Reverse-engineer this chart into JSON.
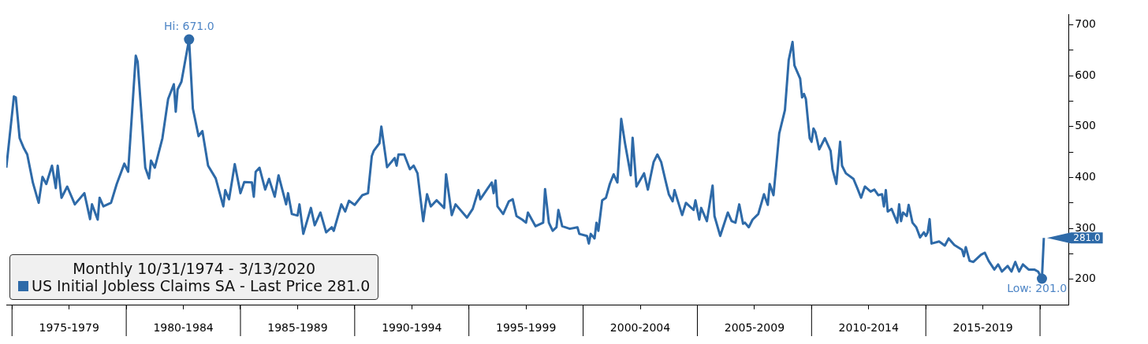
{
  "chart_data": {
    "type": "line",
    "legend_title": "Monthly 10/31/1974 - 3/13/2020",
    "legend": "bottom left",
    "x": [
      "1974-10",
      "1975-02",
      "1975-03",
      "1975-05",
      "1975-07",
      "1975-09",
      "1975-12",
      "1976-03",
      "1976-05",
      "1976-07",
      "1976-10",
      "1976-12",
      "1977-01",
      "1977-03",
      "1977-06",
      "1977-10",
      "1978-03",
      "1978-06",
      "1978-07",
      "1978-10",
      "1978-11",
      "1979-01",
      "1979-05",
      "1979-08",
      "1979-12",
      "1980-02",
      "1980-06",
      "1980-07",
      "1980-11",
      "1981-01",
      "1981-02",
      "1981-04",
      "1981-08",
      "1981-11",
      "1982-02",
      "1982-03",
      "1982-04",
      "1982-06",
      "1982-10",
      "1982-12",
      "1983-03",
      "1983-05",
      "1983-08",
      "1983-12",
      "1984-04",
      "1984-05",
      "1984-07",
      "1984-10",
      "1985-01",
      "1985-03",
      "1985-07",
      "1985-08",
      "1985-09",
      "1985-11",
      "1986-02",
      "1986-04",
      "1986-07",
      "1986-09",
      "1987-01",
      "1987-02",
      "1987-04",
      "1987-07",
      "1987-08",
      "1987-10",
      "1988-02",
      "1988-04",
      "1988-07",
      "1988-10",
      "1989-01",
      "1989-02",
      "1989-06",
      "1989-08",
      "1989-10",
      "1990-01",
      "1990-05",
      "1990-08",
      "1990-10",
      "1990-11",
      "1991-02",
      "1991-03",
      "1991-06",
      "1991-10",
      "1991-11",
      "1991-12",
      "1992-03",
      "1992-06",
      "1992-08",
      "1992-10",
      "1993-01",
      "1993-03",
      "1993-05",
      "1993-08",
      "1993-12",
      "1994-01",
      "1994-04",
      "1994-06",
      "1994-12",
      "1995-03",
      "1995-06",
      "1995-07",
      "1995-11",
      "1996-01",
      "1996-02",
      "1996-03",
      "1996-04",
      "1996-07",
      "1996-10",
      "1996-12",
      "1997-02",
      "1997-05",
      "1997-07",
      "1997-08",
      "1997-12",
      "1998-04",
      "1998-05",
      "1998-07",
      "1998-09",
      "1998-11",
      "1998-12",
      "1999-02",
      "1999-06",
      "1999-10",
      "1999-11",
      "2000-03",
      "2000-04",
      "2000-05",
      "2000-07",
      "2000-08",
      "2000-09",
      "2000-11",
      "2001-01",
      "2001-03",
      "2001-05",
      "2001-07",
      "2001-09",
      "2001-11",
      "2002-02",
      "2002-03",
      "2002-05",
      "2002-09",
      "2002-11",
      "2003-02",
      "2003-04",
      "2003-06",
      "2003-08",
      "2003-10",
      "2003-12",
      "2004-01",
      "2004-05",
      "2004-07",
      "2004-11",
      "2004-12",
      "2005-02",
      "2005-03",
      "2005-06",
      "2005-09",
      "2005-10",
      "2006-01",
      "2006-05",
      "2006-07",
      "2006-09",
      "2006-11",
      "2007-01",
      "2007-02",
      "2007-04",
      "2007-06",
      "2007-09",
      "2007-12",
      "2008-02",
      "2008-03",
      "2008-05",
      "2008-08",
      "2008-11",
      "2009-01",
      "2009-03",
      "2009-04",
      "2009-07",
      "2009-08",
      "2009-09",
      "2009-10",
      "2009-12",
      "2010-01",
      "2010-02",
      "2010-03",
      "2010-05",
      "2010-08",
      "2010-11",
      "2010-12",
      "2011-02",
      "2011-04",
      "2011-05",
      "2011-07",
      "2011-11",
      "2012-01",
      "2012-03",
      "2012-05",
      "2012-08",
      "2012-10",
      "2012-12",
      "2013-02",
      "2013-03",
      "2013-04",
      "2013-05",
      "2013-07",
      "2013-10",
      "2013-11",
      "2013-12",
      "2014-01",
      "2014-03",
      "2014-04",
      "2014-06",
      "2014-08",
      "2014-10",
      "2014-12",
      "2015-01",
      "2015-02",
      "2015-03",
      "2015-04",
      "2015-08",
      "2015-11",
      "2016-01",
      "2016-04",
      "2016-08",
      "2016-09",
      "2016-10",
      "2016-12",
      "2017-02",
      "2017-06",
      "2017-08",
      "2017-10",
      "2018-01",
      "2018-03",
      "2018-05",
      "2018-08",
      "2018-10",
      "2018-12",
      "2019-02",
      "2019-04",
      "2019-07",
      "2019-10",
      "2019-12",
      "2020-02",
      "2020-03"
    ],
    "series": [
      {
        "name": "US Initial Jobless Claims SA - Last Price 281.0",
        "color": "#2e6aa8",
        "values": [
          419,
          559,
          557,
          477,
          459,
          445,
          389,
          350,
          401,
          387,
          423,
          379,
          423,
          360,
          382,
          347,
          369,
          318,
          347,
          317,
          360,
          343,
          350,
          387,
          427,
          411,
          639,
          627,
          419,
          398,
          433,
          419,
          477,
          554,
          583,
          529,
          573,
          588,
          671,
          535,
          481,
          491,
          423,
          398,
          343,
          375,
          357,
          426,
          369,
          391,
          390,
          362,
          411,
          419,
          376,
          397,
          362,
          404,
          347,
          369,
          328,
          325,
          347,
          289,
          340,
          306,
          331,
          292,
          302,
          295,
          347,
          333,
          354,
          346,
          365,
          369,
          442,
          452,
          467,
          500,
          420,
          438,
          423,
          445,
          445,
          416,
          423,
          408,
          314,
          367,
          343,
          355,
          340,
          406,
          326,
          347,
          321,
          338,
          375,
          357,
          379,
          390,
          369,
          394,
          343,
          328,
          353,
          357,
          324,
          317,
          311,
          331,
          304,
          311,
          377,
          311,
          295,
          302,
          336,
          304,
          299,
          302,
          289,
          285,
          270,
          289,
          280,
          311,
          295,
          355,
          360,
          387,
          406,
          390,
          515,
          467,
          404,
          478,
          382,
          408,
          376,
          430,
          445,
          430,
          398,
          367,
          353,
          375,
          326,
          350,
          336,
          355,
          317,
          340,
          314,
          384,
          324,
          285,
          331,
          314,
          311,
          347,
          309,
          311,
          302,
          317,
          328,
          367,
          346,
          387,
          365,
          486,
          532,
          631,
          666,
          620,
          594,
          557,
          564,
          554,
          477,
          470,
          496,
          489,
          455,
          477,
          452,
          416,
          387,
          470,
          423,
          408,
          397,
          379,
          360,
          382,
          372,
          376,
          365,
          367,
          343,
          375,
          333,
          338,
          311,
          347,
          314,
          331,
          324,
          346,
          311,
          302,
          282,
          292,
          285,
          292,
          318,
          270,
          274,
          266,
          280,
          267,
          258,
          245,
          263,
          236,
          234,
          248,
          252,
          236,
          219,
          229,
          215,
          226,
          215,
          234,
          215,
          229,
          219,
          219,
          215,
          201,
          281
        ]
      }
    ],
    "xlim": [
      "1974-10",
      "2021-04"
    ],
    "xticks": [
      {
        "value": "1975-01",
        "label": null
      },
      {
        "value": "1977-07",
        "label": "1975-1979"
      },
      {
        "value": "1980-01",
        "label": null
      },
      {
        "value": "1982-07",
        "label": "1980-1984"
      },
      {
        "value": "1985-01",
        "label": null
      },
      {
        "value": "1987-07",
        "label": "1985-1989"
      },
      {
        "value": "1990-01",
        "label": null
      },
      {
        "value": "1992-07",
        "label": "1990-1994"
      },
      {
        "value": "1995-01",
        "label": null
      },
      {
        "value": "1997-07",
        "label": "1995-1999"
      },
      {
        "value": "2000-01",
        "label": null
      },
      {
        "value": "2002-07",
        "label": "2000-2004"
      },
      {
        "value": "2005-01",
        "label": null
      },
      {
        "value": "2007-07",
        "label": "2005-2009"
      },
      {
        "value": "2010-01",
        "label": null
      },
      {
        "value": "2012-07",
        "label": "2010-2014"
      },
      {
        "value": "2015-01",
        "label": null
      },
      {
        "value": "2017-07",
        "label": "2015-2019"
      },
      {
        "value": "2020-01",
        "label": null
      }
    ],
    "ylim": [
      150,
      720
    ],
    "yticks": [
      200,
      {
        "value": 250,
        "label": null
      },
      300,
      {
        "value": 350,
        "label": null
      },
      400,
      {
        "value": 450,
        "label": null
      },
      500,
      {
        "value": 550,
        "label": null
      },
      600,
      {
        "value": 650,
        "label": null
      },
      700
    ],
    "grid": false,
    "annotations": [
      {
        "text": "Hi: 671.0",
        "x": "1982-10",
        "y": 671
      },
      {
        "text": "Low: 201.0",
        "x": "2020-02",
        "y": 201
      },
      {
        "text": "281.0",
        "x": "2020-03",
        "y": 281
      }
    ]
  }
}
